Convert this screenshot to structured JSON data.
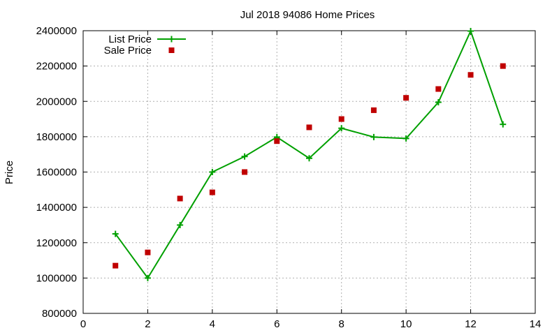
{
  "chart_data": {
    "type": "line",
    "title": "Jul 2018 94086 Home Prices",
    "xlabel": "",
    "ylabel": "Price",
    "xlim": [
      0,
      14
    ],
    "ylim": [
      800000,
      2400000
    ],
    "xticks": [
      "0",
      "2",
      "4",
      "6",
      "8",
      "10",
      "12",
      "14"
    ],
    "yticks": [
      "800000",
      "1000000",
      "1200000",
      "1400000",
      "1600000",
      "1800000",
      "2000000",
      "2200000",
      "2400000"
    ],
    "grid": true,
    "legend_position": "top-left",
    "series": [
      {
        "name": "List Price",
        "style": "line-plus",
        "color": "#00a000",
        "x": [
          1,
          2,
          3,
          4,
          5,
          6,
          7,
          8,
          9,
          10,
          11,
          12,
          13
        ],
        "y": [
          1250000,
          1000000,
          1300000,
          1600000,
          1688000,
          1798000,
          1678000,
          1848000,
          1798000,
          1790000,
          1995000,
          2398000,
          1870000
        ]
      },
      {
        "name": "Sale Price",
        "style": "square",
        "color": "#c00000",
        "x": [
          1,
          2,
          3,
          4,
          5,
          6,
          7,
          8,
          9,
          10,
          11,
          12,
          13
        ],
        "y": [
          1070000,
          1145000,
          1450000,
          1485000,
          1600000,
          1775000,
          1853000,
          1900000,
          1950000,
          2020000,
          2070000,
          2150000,
          2200000
        ]
      }
    ]
  }
}
